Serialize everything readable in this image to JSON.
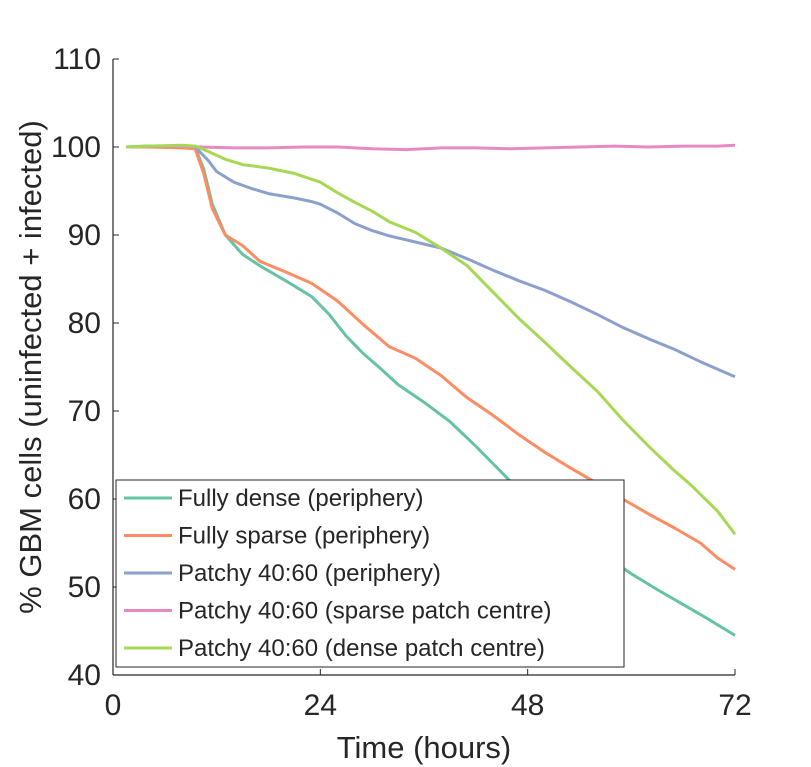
{
  "chart_data": {
    "type": "line",
    "xlabel": "Time (hours)",
    "ylabel": "% GBM cells (uninfected + infected)",
    "xlim": [
      0,
      72
    ],
    "ylim": [
      40,
      110
    ],
    "xticks": [
      0,
      24,
      48,
      72
    ],
    "yticks": [
      40,
      50,
      60,
      70,
      80,
      90,
      100,
      110
    ],
    "grid": false,
    "legend_position": "bottom-left",
    "series": [
      {
        "name": "Fully dense (periphery)",
        "color": "#66c2a5",
        "points": [
          [
            1.5,
            100
          ],
          [
            4,
            100.1
          ],
          [
            8,
            100.1
          ],
          [
            9.5,
            100
          ],
          [
            10.5,
            97.5
          ],
          [
            11.5,
            93.5
          ],
          [
            13,
            90
          ],
          [
            15,
            87.8
          ],
          [
            17,
            86.5
          ],
          [
            20,
            84.8
          ],
          [
            23,
            83
          ],
          [
            25,
            81
          ],
          [
            27,
            78.5
          ],
          [
            29,
            76.5
          ],
          [
            31,
            74.8
          ],
          [
            33,
            73
          ],
          [
            36,
            71
          ],
          [
            39,
            68.8
          ],
          [
            42,
            66
          ],
          [
            45,
            63
          ],
          [
            48,
            60
          ],
          [
            51,
            57.5
          ],
          [
            54,
            55.5
          ],
          [
            57,
            53.5
          ],
          [
            60,
            51.5
          ],
          [
            63,
            49.7
          ],
          [
            66,
            48
          ],
          [
            69,
            46.3
          ],
          [
            72,
            44.5
          ]
        ]
      },
      {
        "name": "Fully sparse (periphery)",
        "color": "#fc8d62",
        "points": [
          [
            1.5,
            100
          ],
          [
            4,
            100
          ],
          [
            8,
            99.9
          ],
          [
            9.5,
            99.8
          ],
          [
            10.5,
            97
          ],
          [
            11.5,
            93
          ],
          [
            13,
            90
          ],
          [
            15,
            88.8
          ],
          [
            17,
            87
          ],
          [
            20,
            85.8
          ],
          [
            23,
            84.5
          ],
          [
            26,
            82.5
          ],
          [
            29,
            79.8
          ],
          [
            32,
            77.3
          ],
          [
            35,
            76
          ],
          [
            38,
            74
          ],
          [
            41,
            71.5
          ],
          [
            44,
            69.5
          ],
          [
            47,
            67.3
          ],
          [
            50,
            65.3
          ],
          [
            53,
            63.5
          ],
          [
            56,
            61.8
          ],
          [
            59,
            60
          ],
          [
            62,
            58.3
          ],
          [
            65,
            56.7
          ],
          [
            68,
            55
          ],
          [
            70,
            53.3
          ],
          [
            72,
            52
          ]
        ]
      },
      {
        "name": "Patchy 40:60 (periphery)",
        "color": "#8da0cb",
        "points": [
          [
            1.5,
            100
          ],
          [
            4,
            100.1
          ],
          [
            8,
            100.1
          ],
          [
            9.5,
            100
          ],
          [
            11,
            98.5
          ],
          [
            12,
            97.2
          ],
          [
            14,
            96
          ],
          [
            16,
            95.3
          ],
          [
            18,
            94.7
          ],
          [
            21,
            94.2
          ],
          [
            23,
            93.8
          ],
          [
            24,
            93.5
          ],
          [
            26,
            92.5
          ],
          [
            28,
            91.3
          ],
          [
            30,
            90.5
          ],
          [
            32,
            89.9
          ],
          [
            35,
            89.2
          ],
          [
            38,
            88.5
          ],
          [
            41,
            87.3
          ],
          [
            44,
            86
          ],
          [
            47,
            84.8
          ],
          [
            50,
            83.7
          ],
          [
            53,
            82.4
          ],
          [
            56,
            81
          ],
          [
            59,
            79.5
          ],
          [
            62,
            78.2
          ],
          [
            65,
            77
          ],
          [
            68,
            75.6
          ],
          [
            72,
            73.9
          ]
        ]
      },
      {
        "name": "Patchy 40:60 (sparse patch centre)",
        "color": "#e78ac3",
        "points": [
          [
            1.5,
            100
          ],
          [
            6,
            100.1
          ],
          [
            10,
            100
          ],
          [
            14,
            99.9
          ],
          [
            18,
            99.9
          ],
          [
            22,
            100
          ],
          [
            26,
            100
          ],
          [
            30,
            99.8
          ],
          [
            34,
            99.7
          ],
          [
            38,
            99.9
          ],
          [
            42,
            99.9
          ],
          [
            46,
            99.8
          ],
          [
            50,
            99.9
          ],
          [
            54,
            100
          ],
          [
            58,
            100.1
          ],
          [
            62,
            100
          ],
          [
            66,
            100.1
          ],
          [
            70,
            100.1
          ],
          [
            72,
            100.2
          ]
        ]
      },
      {
        "name": "Patchy 40:60 (dense patch centre)",
        "color": "#a6d854",
        "points": [
          [
            1.5,
            100
          ],
          [
            4,
            100.1
          ],
          [
            8,
            100.2
          ],
          [
            9.5,
            100.1
          ],
          [
            11,
            99.5
          ],
          [
            13,
            98.6
          ],
          [
            15,
            98
          ],
          [
            18,
            97.6
          ],
          [
            21,
            97
          ],
          [
            24,
            96
          ],
          [
            26,
            94.8
          ],
          [
            28,
            93.7
          ],
          [
            30,
            92.7
          ],
          [
            32,
            91.5
          ],
          [
            35,
            90.3
          ],
          [
            38,
            88.5
          ],
          [
            41,
            86.5
          ],
          [
            44,
            83.5
          ],
          [
            47,
            80.5
          ],
          [
            50,
            77.8
          ],
          [
            53,
            75
          ],
          [
            56,
            72.3
          ],
          [
            59,
            69
          ],
          [
            62,
            66
          ],
          [
            65,
            63.2
          ],
          [
            67,
            61.5
          ],
          [
            70,
            58.6
          ],
          [
            72,
            56
          ]
        ]
      }
    ]
  }
}
